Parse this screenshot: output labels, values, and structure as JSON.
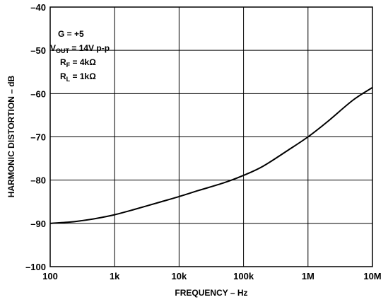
{
  "chart_data": {
    "type": "line",
    "title": "",
    "xlabel": "FREQUENCY – Hz",
    "ylabel": "HARMONIC DISTORTION – dB",
    "x_scale": "log",
    "xlim": [
      100,
      10000000
    ],
    "ylim": [
      -100,
      -40
    ],
    "grid": true,
    "x_ticks": [
      {
        "value": 100,
        "label": "100"
      },
      {
        "value": 1000,
        "label": "1k"
      },
      {
        "value": 10000,
        "label": "10k"
      },
      {
        "value": 100000,
        "label": "100k"
      },
      {
        "value": 1000000,
        "label": "1M"
      },
      {
        "value": 10000000,
        "label": "10M"
      }
    ],
    "y_ticks": [
      {
        "value": -40,
        "label": "–40"
      },
      {
        "value": -50,
        "label": "–50"
      },
      {
        "value": -60,
        "label": "–60"
      },
      {
        "value": -70,
        "label": "–70"
      },
      {
        "value": -80,
        "label": "–80"
      },
      {
        "value": -90,
        "label": "–90"
      },
      {
        "value": -100,
        "label": "–100"
      }
    ],
    "annotations": {
      "gain": "G = +5",
      "vout_main": "V",
      "vout_sub": "OUT",
      "vout_rest": " = 14V p-p",
      "rf_main": "R",
      "rf_sub": "F",
      "rf_rest": " = 4kΩ",
      "rl_main": "R",
      "rl_sub": "L",
      "rl_rest": " = 1kΩ"
    },
    "series": [
      {
        "x": [
          100,
          200,
          300,
          500,
          1000,
          2000,
          5000,
          10000,
          20000,
          50000,
          100000,
          200000,
          500000,
          1000000,
          2000000,
          5000000,
          10000000
        ],
        "y": [
          -90,
          -89.7,
          -89.4,
          -88.9,
          -88,
          -86.8,
          -85.1,
          -83.8,
          -82.4,
          -80.6,
          -78.9,
          -76.8,
          -73,
          -70,
          -66.5,
          -61.5,
          -58.6
        ]
      }
    ],
    "colors": {
      "line": "#000000",
      "grid": "#000000",
      "background": "#ffffff"
    }
  }
}
